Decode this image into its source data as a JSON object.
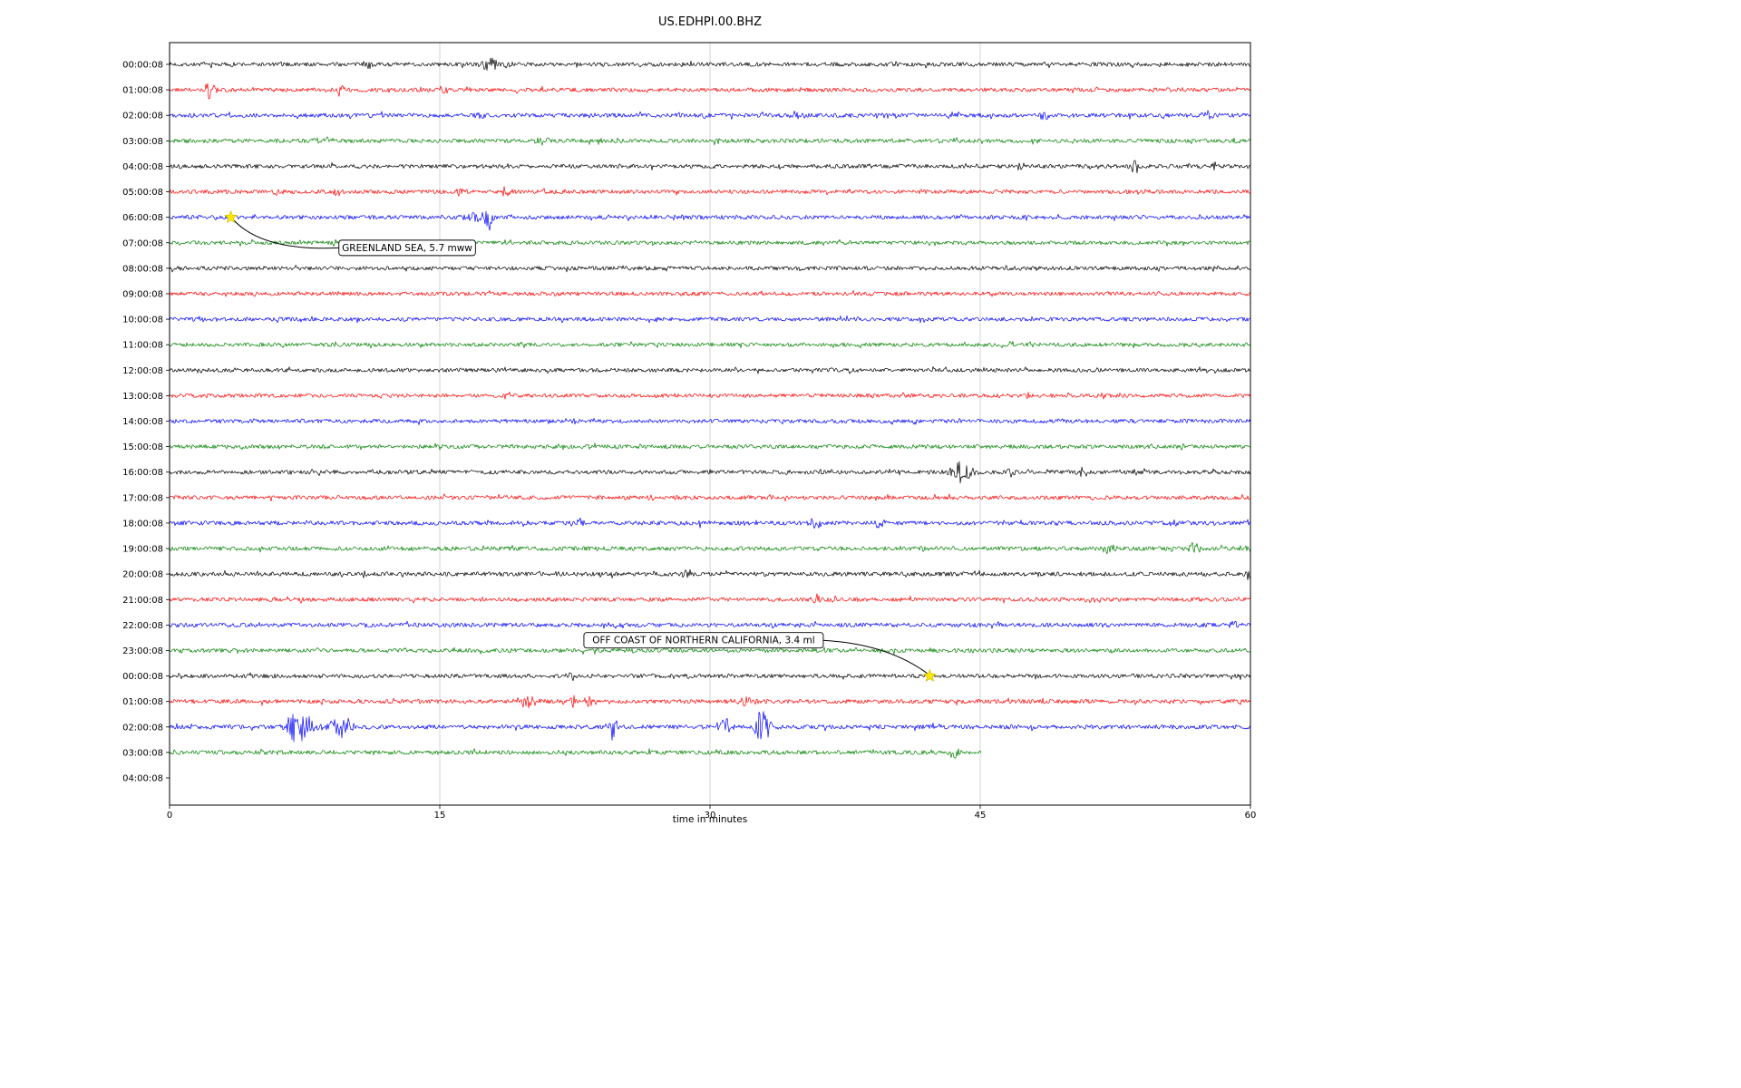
{
  "chart_data": {
    "type": "line",
    "title": "US.EDHPI.00.BHZ",
    "xlabel": "time in minutes",
    "x_range": [
      0,
      60
    ],
    "x_ticks": [
      0,
      15,
      30,
      45,
      60
    ],
    "grid_x": [
      15,
      30,
      45
    ],
    "legend": "none",
    "grid": "vertical-only",
    "colors": {
      "black": "#000000",
      "red": "#ff0000",
      "blue": "#0000ff",
      "green": "#008000",
      "grid": "#c9c9c9",
      "marker": "#ffe900",
      "marker_edge": "#c8b400",
      "annotation_bg": "#ffffff",
      "annotation_border": "#000000"
    },
    "rows": [
      {
        "label": "00:00:08",
        "color": "black",
        "noise": 2.2,
        "events": [
          [
            11,
            6,
            0.2
          ],
          [
            17.8,
            9,
            0.45
          ],
          [
            18.8,
            5,
            0.2
          ]
        ]
      },
      {
        "label": "01:00:08",
        "color": "red",
        "noise": 2.2,
        "events": [
          [
            2.2,
            9,
            0.3
          ],
          [
            9.5,
            7,
            0.25
          ],
          [
            15.2,
            6,
            0.2
          ],
          [
            51.5,
            4,
            0.3
          ]
        ]
      },
      {
        "label": "02:00:08",
        "color": "blue",
        "noise": 2.3,
        "events": [
          [
            17.2,
            4,
            0.3
          ],
          [
            34.8,
            5,
            0.4
          ],
          [
            39.6,
            6,
            0.3
          ],
          [
            48.5,
            5,
            0.3
          ],
          [
            57.6,
            4,
            0.3
          ]
        ]
      },
      {
        "label": "03:00:08",
        "color": "green",
        "noise": 2.2,
        "events": [
          [
            8.6,
            4,
            0.5
          ],
          [
            20.8,
            5,
            0.4
          ],
          [
            24.8,
            3,
            0.3
          ],
          [
            30.3,
            4,
            0.4
          ]
        ]
      },
      {
        "label": "04:00:08",
        "color": "black",
        "noise": 2.2,
        "events": [
          [
            47.2,
            6,
            0.2
          ],
          [
            53.6,
            8,
            0.25
          ],
          [
            58,
            4,
            0.2
          ]
        ]
      },
      {
        "label": "05:00:08",
        "color": "red",
        "noise": 2.2,
        "events": [
          [
            6,
            5,
            0.2
          ],
          [
            9.3,
            6,
            0.2
          ],
          [
            16,
            6,
            0.25
          ],
          [
            18.7,
            6,
            0.25
          ]
        ]
      },
      {
        "label": "06:00:08",
        "color": "blue",
        "noise": 2.2,
        "events": [
          [
            16.9,
            7,
            0.5
          ],
          [
            17.7,
            13,
            0.35
          ],
          [
            28.2,
            4,
            0.3
          ]
        ]
      },
      {
        "label": "07:00:08",
        "color": "green",
        "noise": 2.1,
        "events": []
      },
      {
        "label": "08:00:08",
        "color": "black",
        "noise": 2.2,
        "events": []
      },
      {
        "label": "09:00:08",
        "color": "red",
        "noise": 2.1,
        "events": []
      },
      {
        "label": "10:00:08",
        "color": "blue",
        "noise": 2.1,
        "events": []
      },
      {
        "label": "11:00:08",
        "color": "green",
        "noise": 2.1,
        "events": []
      },
      {
        "label": "12:00:08",
        "color": "black",
        "noise": 2.1,
        "events": [
          [
            16,
            3,
            0.2
          ]
        ]
      },
      {
        "label": "13:00:08",
        "color": "red",
        "noise": 2.1,
        "events": []
      },
      {
        "label": "14:00:08",
        "color": "blue",
        "noise": 2.1,
        "events": []
      },
      {
        "label": "15:00:08",
        "color": "green",
        "noise": 2.2,
        "events": []
      },
      {
        "label": "16:00:08",
        "color": "black",
        "noise": 2.2,
        "events": [
          [
            43.9,
            13,
            0.6
          ],
          [
            46.7,
            6,
            0.2
          ],
          [
            50.6,
            5,
            0.2
          ]
        ]
      },
      {
        "label": "17:00:08",
        "color": "red",
        "noise": 2.2,
        "events": [
          [
            19,
            7,
            0.2
          ],
          [
            26.6,
            7,
            0.2
          ]
        ]
      },
      {
        "label": "18:00:08",
        "color": "blue",
        "noise": 2.3,
        "events": [
          [
            19.6,
            5,
            0.3
          ],
          [
            22.9,
            5,
            0.3
          ],
          [
            29.5,
            4,
            0.3
          ],
          [
            35.8,
            7,
            0.3
          ],
          [
            39.4,
            5,
            0.3
          ],
          [
            55.7,
            5,
            0.3
          ]
        ]
      },
      {
        "label": "19:00:08",
        "color": "green",
        "noise": 2.3,
        "events": [
          [
            52.2,
            6,
            0.4
          ],
          [
            56.9,
            7,
            0.3
          ],
          [
            59.9,
            5,
            0.2
          ]
        ]
      },
      {
        "label": "20:00:08",
        "color": "black",
        "noise": 2.3,
        "events": [
          [
            10.8,
            4,
            0.2
          ],
          [
            28.7,
            7,
            0.2
          ],
          [
            59.9,
            9,
            0.15
          ]
        ]
      },
      {
        "label": "21:00:08",
        "color": "red",
        "noise": 2.2,
        "events": [
          [
            35.9,
            6,
            0.2
          ],
          [
            51,
            4,
            0.3
          ]
        ]
      },
      {
        "label": "22:00:08",
        "color": "blue",
        "noise": 2.3,
        "events": [
          [
            59,
            4,
            0.4
          ]
        ]
      },
      {
        "label": "23:00:08",
        "color": "green",
        "noise": 2.2,
        "events": []
      },
      {
        "label": "00:00:08",
        "color": "black",
        "noise": 2.2,
        "events": [
          [
            22.3,
            6,
            0.2
          ]
        ]
      },
      {
        "label": "01:00:08",
        "color": "red",
        "noise": 2.3,
        "events": [
          [
            19.8,
            8,
            0.5
          ],
          [
            22.4,
            6,
            0.3
          ],
          [
            23.3,
            8,
            0.3
          ],
          [
            31.9,
            7,
            0.5
          ]
        ]
      },
      {
        "label": "02:00:08",
        "color": "blue",
        "noise": 2.3,
        "events": [
          [
            6.9,
            18,
            0.4
          ],
          [
            7.6,
            14,
            0.5
          ],
          [
            9.6,
            11,
            0.8
          ],
          [
            24.6,
            14,
            0.3
          ],
          [
            30.9,
            11,
            0.5
          ],
          [
            32.9,
            20,
            0.4
          ]
        ]
      },
      {
        "label": "03:00:08",
        "color": "green",
        "noise": 2.3,
        "end": 45.1,
        "events": [
          [
            43.6,
            9,
            0.4
          ]
        ]
      },
      {
        "label": "04:00:08",
        "color": "black",
        "noise": 0,
        "trace": false,
        "events": []
      }
    ],
    "annotations": [
      {
        "label": "GREENLAND SEA, 5.7 mww",
        "marker_t": 3.4,
        "marker_row": 6,
        "box_t": 9.4,
        "box_row": 7.2
      },
      {
        "label": "OFF COAST OF NORTHERN CALIFORNIA, 3.4 ml",
        "marker_t": 42.2,
        "marker_row": 24,
        "box_t": 23.0,
        "box_row": 22.6
      }
    ]
  }
}
